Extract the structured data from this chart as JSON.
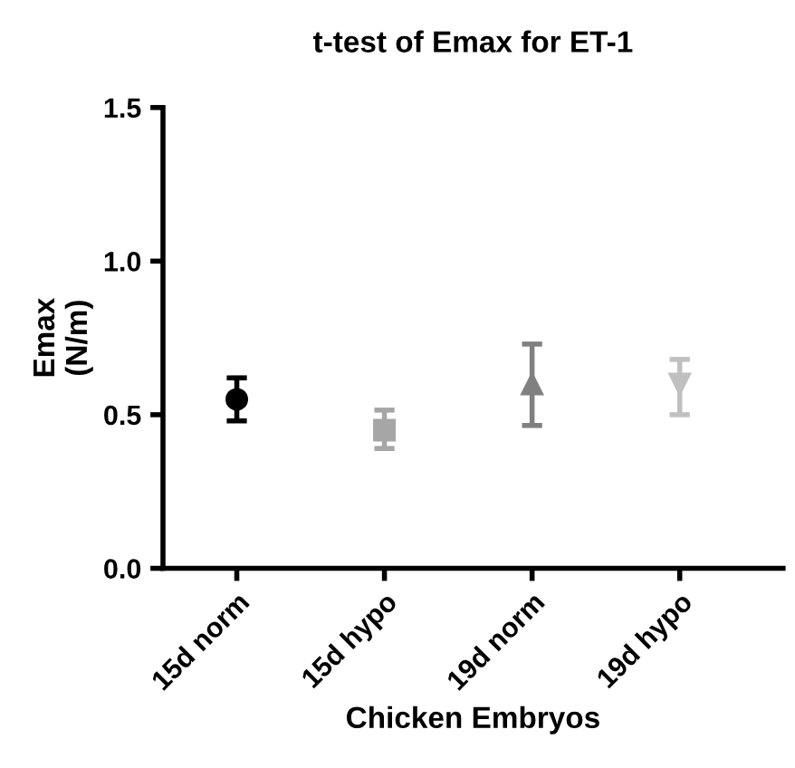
{
  "chart_data": {
    "type": "scatter",
    "title": "t-test of Emax for ET-1",
    "xlabel": "Chicken Embryos",
    "ylabel": "Emax\n(N/m)",
    "categories": [
      "15d norm",
      "15d hypo",
      "19d norm",
      "19d hypo"
    ],
    "series": [
      {
        "color": "#000000",
        "marker": "circle",
        "values": [
          0.55,
          null,
          null,
          null
        ],
        "errors": [
          [
            0.48,
            0.62
          ],
          null,
          null,
          null
        ]
      },
      {
        "color": "#a6a6a6",
        "marker": "square",
        "values": [
          null,
          0.45,
          null,
          null
        ],
        "errors": [
          null,
          [
            0.39,
            0.515
          ],
          null,
          null
        ]
      },
      {
        "color": "#808080",
        "marker": "triangle",
        "values": [
          null,
          null,
          0.6,
          null
        ],
        "errors": [
          null,
          null,
          [
            0.465,
            0.73
          ],
          null
        ]
      },
      {
        "color": "#c0c0c0",
        "marker": "triangle_down",
        "values": [
          null,
          null,
          null,
          0.6
        ],
        "errors": [
          null,
          null,
          null,
          [
            0.5,
            0.68
          ]
        ]
      }
    ],
    "ylim": [
      0,
      1.5
    ],
    "yticks": [
      {
        "value": 0,
        "label": "0.0"
      },
      {
        "value": 0.5,
        "label": "0.5"
      },
      {
        "value": 1.0,
        "label": "1.0"
      },
      {
        "value": 1.5,
        "label": "1.5"
      }
    ],
    "grid": false,
    "legend": false
  }
}
